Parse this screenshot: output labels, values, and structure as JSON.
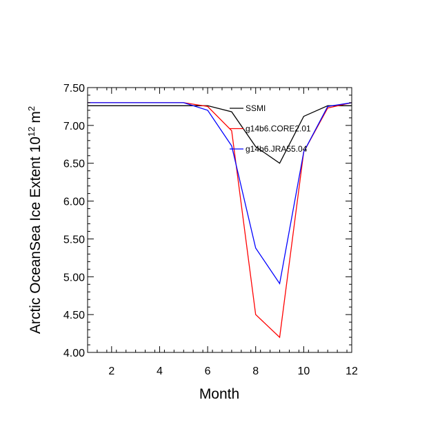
{
  "chart_data": {
    "type": "line",
    "title": "",
    "xlabel": "Month",
    "ylabel_main": "Arctic OceanSea Ice Extent 10",
    "ylabel_exp": "12",
    "ylabel_unit": "m",
    "ylabel_unit_exp": "2",
    "xlim": [
      1,
      12
    ],
    "ylim": [
      4.0,
      7.5
    ],
    "xticks": [
      2,
      4,
      6,
      8,
      10,
      12
    ],
    "xtick_labels": [
      "2",
      "4",
      "6",
      "8",
      "10",
      "12"
    ],
    "yticks": [
      4.0,
      4.5,
      5.0,
      5.5,
      6.0,
      6.5,
      7.0,
      7.5
    ],
    "ytick_labels": [
      "4.00",
      "4.50",
      "5.00",
      "5.50",
      "6.00",
      "6.50",
      "7.00",
      "7.50"
    ],
    "grid": false,
    "legend_position": "top-right",
    "series": [
      {
        "name": "SSMI",
        "color": "#000000",
        "x": [
          1,
          2,
          3,
          4,
          5,
          6,
          7,
          8,
          9,
          10,
          11,
          12
        ],
        "values": [
          7.26,
          7.26,
          7.26,
          7.26,
          7.26,
          7.26,
          7.18,
          6.72,
          6.5,
          7.12,
          7.26,
          7.26
        ]
      },
      {
        "name": "g14b6.CORE2.01",
        "color": "#ff0000",
        "x": [
          1,
          2,
          3,
          4,
          5,
          6,
          7,
          8,
          9,
          10,
          11,
          12
        ],
        "values": [
          7.3,
          7.3,
          7.3,
          7.3,
          7.3,
          7.25,
          6.93,
          4.5,
          4.2,
          6.65,
          7.23,
          7.3
        ]
      },
      {
        "name": "g14b6.JRA55.04",
        "color": "#0000ff",
        "x": [
          1,
          2,
          3,
          4,
          5,
          6,
          7,
          8,
          9,
          10,
          11,
          12
        ],
        "values": [
          7.3,
          7.3,
          7.3,
          7.3,
          7.3,
          7.2,
          6.73,
          5.38,
          4.91,
          6.65,
          7.25,
          7.3
        ]
      }
    ]
  }
}
